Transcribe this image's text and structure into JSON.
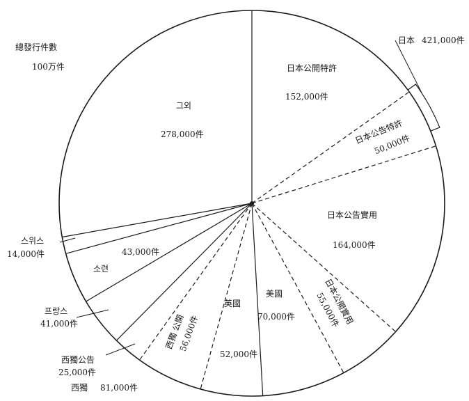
{
  "chart_data": {
    "type": "pie",
    "total_label": "總發行件數",
    "total_value": "100万件",
    "slices": [
      {
        "name": "日本公開特許",
        "value": 152000,
        "value_label": "152,000件",
        "style": "solid"
      },
      {
        "name": "日本公告特許",
        "value": 50000,
        "value_label": "50,000件",
        "style": "dashed"
      },
      {
        "name": "日本公告實用",
        "value": 164000,
        "value_label": "164,000件",
        "style": "solid"
      },
      {
        "name": "日本公開實用",
        "value": 55000,
        "value_label": "55,000件",
        "style": "dashed"
      },
      {
        "name": "美國",
        "value": 70000,
        "value_label": "70,000件",
        "style": "solid"
      },
      {
        "name": "英國",
        "value": 52000,
        "value_label": "52,000件",
        "style": "solid"
      },
      {
        "name": "西獨 公開",
        "value": 56000,
        "value_label": "56,000件",
        "style": "dashed"
      },
      {
        "name": "西獨公告",
        "value": 25000,
        "value_label": "25,000件",
        "style": "solid"
      },
      {
        "name": "프랑스",
        "value": 41000,
        "value_label": "41,000件",
        "style": "solid"
      },
      {
        "name": "소련",
        "value": 43000,
        "value_label": "43,000件",
        "style": "solid"
      },
      {
        "name": "스위스",
        "value": 14000,
        "value_label": "14,000件",
        "style": "solid"
      },
      {
        "name": "그외",
        "value": 278000,
        "value_label": "278,000件",
        "style": "solid"
      }
    ],
    "groups": [
      {
        "name": "日本",
        "value_label": "421,000件"
      },
      {
        "name": "西獨",
        "value_label": "81,000件"
      }
    ]
  }
}
